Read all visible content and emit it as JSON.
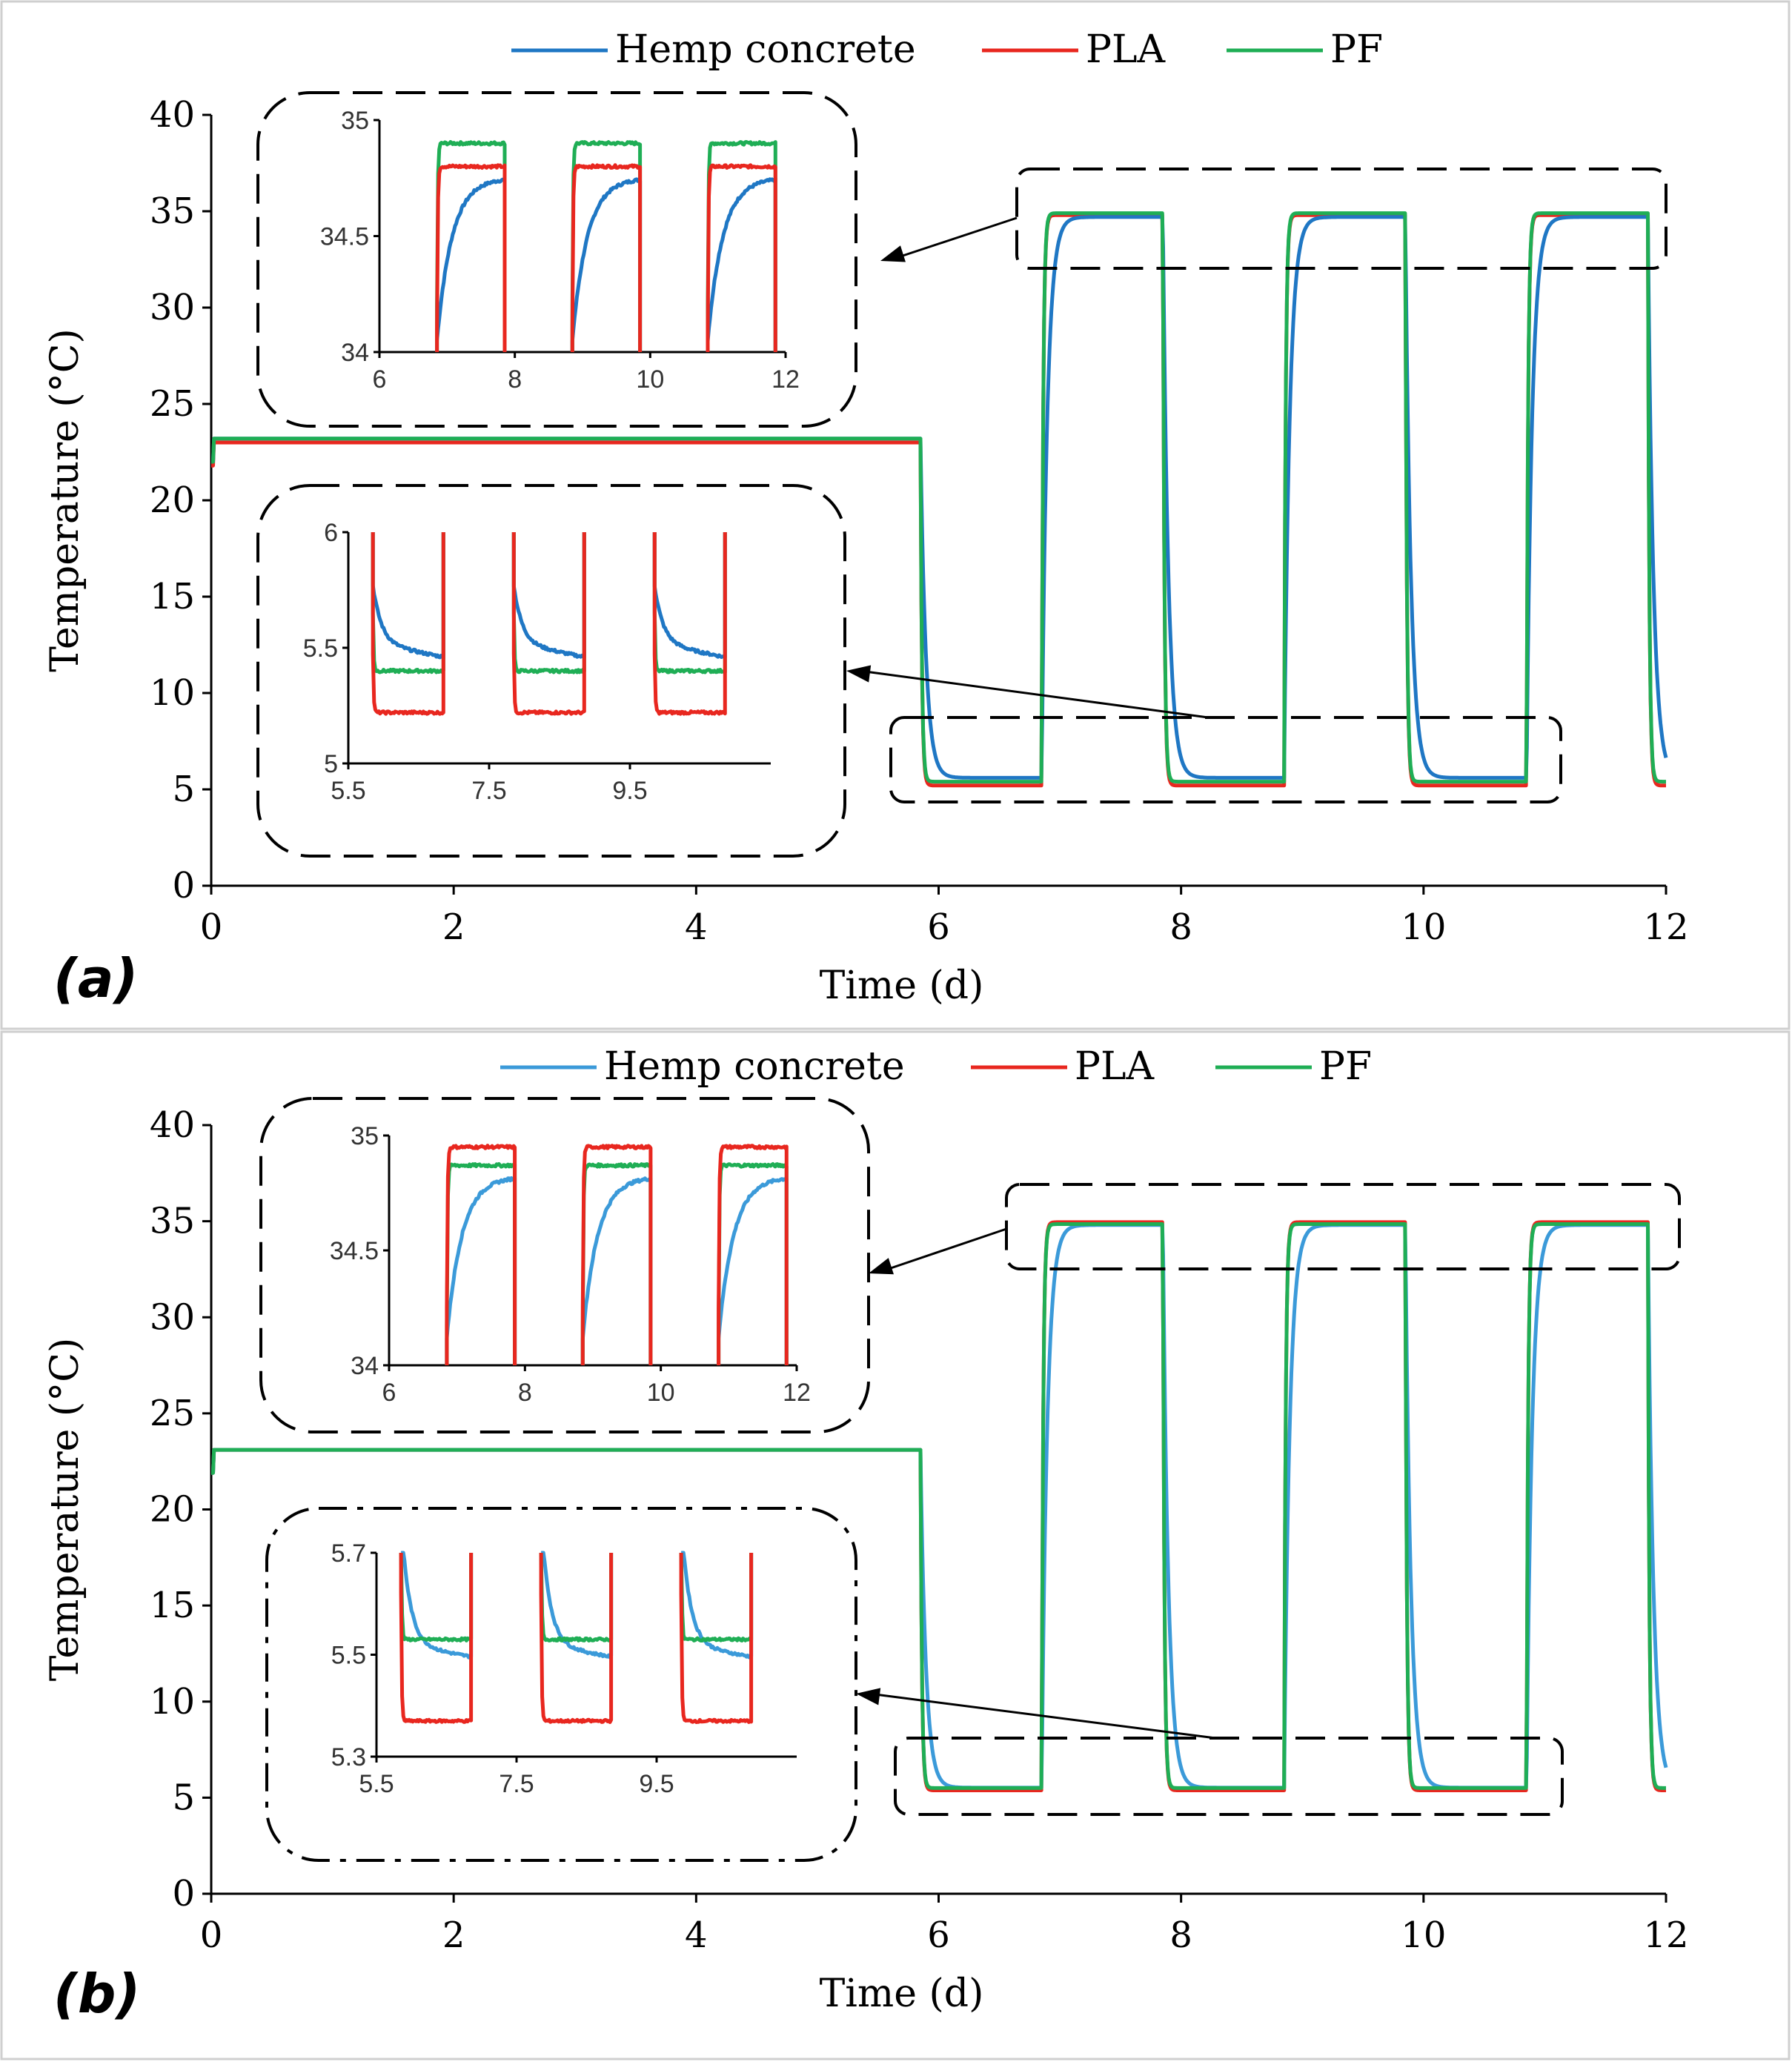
{
  "chart_data": [
    {
      "panel_label": "(a)",
      "type": "line",
      "xlabel": "Time (d)",
      "ylabel": "Temperature (°C)",
      "xlim": [
        0,
        12
      ],
      "ylim": [
        0,
        40
      ],
      "xticks": [
        "0",
        "2",
        "4",
        "6",
        "8",
        "10",
        "12"
      ],
      "yticks": [
        "0",
        "5",
        "10",
        "15",
        "20",
        "25",
        "30",
        "35",
        "40"
      ],
      "legend": [
        "Hemp concrete",
        "PLA",
        "PF"
      ],
      "colors": {
        "Hemp concrete": "#1f77c4",
        "PLA": "#e8271f",
        "PF": "#1fae55"
      },
      "series_levels": {
        "Hemp concrete": {
          "initial": 23.2,
          "hot": 34.7,
          "cold": 5.6
        },
        "PLA": {
          "initial": 23.0,
          "hot": 34.8,
          "cold": 5.2
        },
        "PF": {
          "initial": 23.2,
          "hot": 34.9,
          "cold": 5.4
        }
      },
      "cycles": [
        [
          5.85,
          6.85,
          "cold"
        ],
        [
          6.85,
          7.85,
          "hot"
        ],
        [
          7.85,
          8.85,
          "cold"
        ],
        [
          8.85,
          9.85,
          "hot"
        ],
        [
          9.85,
          10.85,
          "cold"
        ],
        [
          10.85,
          11.85,
          "hot"
        ],
        [
          11.85,
          12.0,
          "cold"
        ]
      ],
      "insets": [
        {
          "name": "hot-zoom",
          "xlim": [
            6,
            12
          ],
          "ylim": [
            34,
            35
          ],
          "xticks": [
            "6",
            "8",
            "10",
            "12"
          ],
          "yticks": [
            "34",
            "34.5",
            "35"
          ],
          "plateau": {
            "Hemp concrete": 34.75,
            "PLA": 34.8,
            "PF": 34.9
          }
        },
        {
          "name": "cold-zoom",
          "xlim": [
            5.5,
            11.5
          ],
          "ylim": [
            5,
            6
          ],
          "xticks": [
            "5.5",
            "7.5",
            "9.5"
          ],
          "yticks": [
            "5",
            "5.5",
            "6"
          ],
          "plateau": {
            "Hemp concrete": 5.52,
            "PLA": 5.22,
            "PF": 5.4
          }
        }
      ]
    },
    {
      "panel_label": "(b)",
      "type": "line",
      "xlabel": "Time (d)",
      "ylabel": "Temperature (°C)",
      "xlim": [
        0,
        12
      ],
      "ylim": [
        0,
        40
      ],
      "xticks": [
        "0",
        "2",
        "4",
        "6",
        "8",
        "10",
        "12"
      ],
      "yticks": [
        "0",
        "5",
        "10",
        "15",
        "20",
        "25",
        "30",
        "35",
        "40"
      ],
      "legend": [
        "Hemp concrete",
        "PLA",
        "PF"
      ],
      "colors": {
        "Hemp concrete": "#3b9ad9",
        "PLA": "#e8271f",
        "PF": "#1fae55"
      },
      "series_levels": {
        "Hemp concrete": {
          "initial": 23.1,
          "hot": 34.8,
          "cold": 5.52
        },
        "PLA": {
          "initial": 23.1,
          "hot": 34.95,
          "cold": 5.38
        },
        "PF": {
          "initial": 23.1,
          "hot": 34.85,
          "cold": 5.5
        }
      },
      "cycles": [
        [
          5.85,
          6.85,
          "cold"
        ],
        [
          6.85,
          7.85,
          "hot"
        ],
        [
          7.85,
          8.85,
          "cold"
        ],
        [
          8.85,
          9.85,
          "hot"
        ],
        [
          9.85,
          10.85,
          "cold"
        ],
        [
          10.85,
          11.85,
          "hot"
        ],
        [
          11.85,
          12.0,
          "cold"
        ]
      ],
      "insets": [
        {
          "name": "hot-zoom",
          "xlim": [
            6,
            12
          ],
          "ylim": [
            34,
            35
          ],
          "xticks": [
            "6",
            "8",
            "10",
            "12"
          ],
          "yticks": [
            "34",
            "34.5",
            "35"
          ],
          "plateau": {
            "Hemp concrete": 34.82,
            "PLA": 34.95,
            "PF": 34.87
          }
        },
        {
          "name": "cold-zoom",
          "xlim": [
            5.5,
            11.5
          ],
          "ylim": [
            5.3,
            5.7
          ],
          "xticks": [
            "5.5",
            "7.5",
            "9.5"
          ],
          "yticks": [
            "5.3",
            "5.5",
            "5.7"
          ],
          "plateau": {
            "Hemp concrete": 5.52,
            "PLA": 5.37,
            "PF": 5.53
          }
        }
      ]
    }
  ]
}
